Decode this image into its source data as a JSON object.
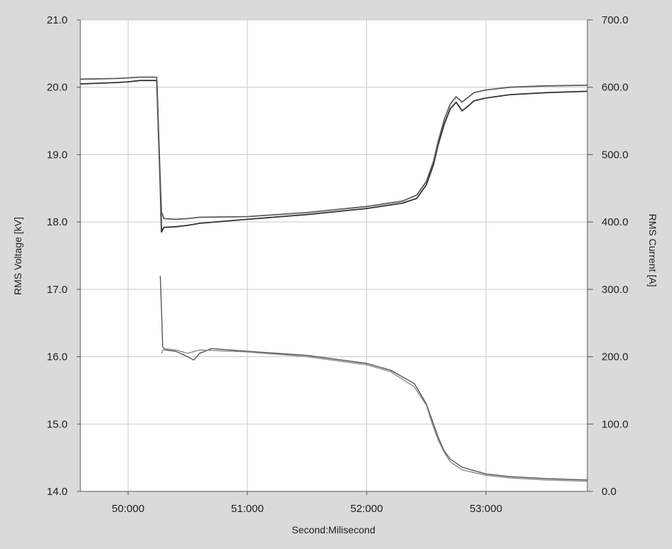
{
  "chart_data": {
    "type": "line",
    "xlabel": "Second:Milisecond",
    "ylabel_left": "RMS Voltage [kV]",
    "ylabel_right": "RMS Current [A]",
    "xlim": [
      49.6,
      53.85
    ],
    "ylim_left": [
      14.0,
      21.0
    ],
    "ylim_right": [
      0.0,
      700.0
    ],
    "grid": true,
    "x_ticks": [
      50,
      51,
      52,
      53
    ],
    "x_tick_labels": [
      "50:000",
      "51:000",
      "52:000",
      "53:000"
    ],
    "y_left_ticks": [
      21,
      20,
      19,
      18,
      17,
      16,
      15,
      14
    ],
    "y_left_tick_labels": [
      "21.0",
      "20.0",
      "19.0",
      "18.0",
      "17.0",
      "16.0",
      "15.0",
      "14.0"
    ],
    "y_right_ticks": [
      700,
      600,
      500,
      400,
      300,
      200,
      100,
      0
    ],
    "y_right_tick_labels": [
      "700.0",
      "600.0",
      "500.0",
      "400.0",
      "300.0",
      "200.0",
      "100.0",
      "0.0"
    ],
    "series": [
      {
        "axis": "left",
        "color": "#333333",
        "x": [
          49.6,
          49.9,
          50.0,
          50.1,
          50.24,
          50.27,
          50.28,
          50.3,
          50.4,
          50.5,
          50.6,
          51.0,
          51.5,
          52.0,
          52.3,
          52.42,
          52.5,
          52.56,
          52.6,
          52.65,
          52.7,
          52.75,
          52.8,
          52.85,
          52.9,
          53.0,
          53.2,
          53.5,
          53.85
        ],
        "y": [
          20.05,
          20.07,
          20.08,
          20.1,
          20.1,
          18.5,
          17.85,
          17.92,
          17.93,
          17.95,
          17.98,
          18.04,
          18.11,
          18.2,
          18.28,
          18.35,
          18.55,
          18.85,
          19.15,
          19.45,
          19.68,
          19.78,
          19.65,
          19.72,
          19.8,
          19.84,
          19.89,
          19.92,
          19.94
        ]
      },
      {
        "axis": "left",
        "color": "#5c5c5c",
        "x": [
          49.6,
          49.9,
          50.0,
          50.1,
          50.24,
          50.27,
          50.28,
          50.3,
          50.4,
          50.5,
          50.6,
          51.0,
          51.5,
          52.0,
          52.3,
          52.42,
          52.5,
          52.56,
          52.6,
          52.65,
          52.7,
          52.75,
          52.8,
          52.85,
          52.9,
          53.0,
          53.2,
          53.5,
          53.85
        ],
        "y": [
          20.12,
          20.13,
          20.14,
          20.15,
          20.15,
          18.6,
          18.15,
          18.05,
          18.04,
          18.05,
          18.07,
          18.08,
          18.14,
          18.23,
          18.31,
          18.4,
          18.6,
          18.9,
          19.2,
          19.52,
          19.75,
          19.86,
          19.78,
          19.85,
          19.92,
          19.96,
          20.0,
          20.02,
          20.03
        ]
      },
      {
        "axis": "right",
        "color": "#555555",
        "x": [
          50.27,
          50.28,
          50.29,
          50.31,
          50.4,
          50.5,
          50.55,
          50.6,
          50.7,
          51.0,
          51.5,
          52.0,
          52.2,
          52.4,
          52.5,
          52.55,
          52.6,
          52.65,
          52.7,
          52.8,
          53.0,
          53.2,
          53.5,
          53.85
        ],
        "y": [
          320,
          270,
          215,
          210,
          208,
          200,
          195,
          205,
          212,
          208,
          202,
          190,
          180,
          160,
          130,
          105,
          80,
          60,
          48,
          36,
          26,
          22,
          19,
          17
        ]
      },
      {
        "axis": "right",
        "color": "#8a8a8a",
        "x": [
          50.28,
          50.3,
          50.4,
          50.5,
          50.6,
          51.0,
          51.5,
          52.0,
          52.2,
          52.4,
          52.5,
          52.55,
          52.6,
          52.65,
          52.7,
          52.8,
          53.0,
          53.2,
          53.5,
          53.85
        ],
        "y": [
          205,
          212,
          210,
          205,
          210,
          207,
          200,
          188,
          178,
          155,
          128,
          100,
          76,
          58,
          44,
          32,
          24,
          20,
          17,
          15
        ]
      }
    ]
  }
}
